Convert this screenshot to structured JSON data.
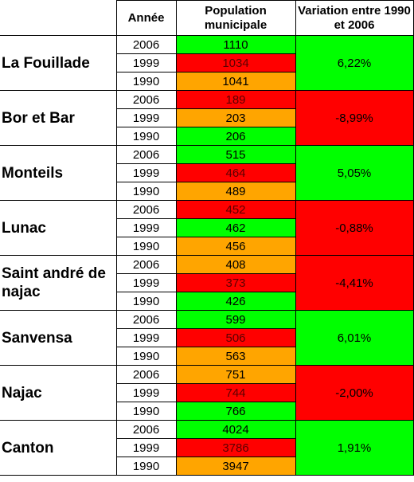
{
  "header": {
    "annee": "Année",
    "population": "Population municipale",
    "variation": "Variation entre 1990 et 2006"
  },
  "colors": {
    "green": "#00ff00",
    "orange": "#ffa500",
    "red": "#ff0000"
  },
  "communes": [
    {
      "name": "La Fouillade",
      "variation": "6,22%",
      "variation_color": "green",
      "rows": [
        {
          "year": "2006",
          "pop": "1110",
          "color": "green"
        },
        {
          "year": "1999",
          "pop": "1034",
          "color": "red"
        },
        {
          "year": "1990",
          "pop": "1041",
          "color": "orange"
        }
      ]
    },
    {
      "name": "Bor et Bar",
      "variation": "-8,99%",
      "variation_color": "red",
      "rows": [
        {
          "year": "2006",
          "pop": "189",
          "color": "red"
        },
        {
          "year": "1999",
          "pop": "203",
          "color": "orange"
        },
        {
          "year": "1990",
          "pop": "206",
          "color": "green"
        }
      ]
    },
    {
      "name": "Monteils",
      "variation": "5,05%",
      "variation_color": "green",
      "rows": [
        {
          "year": "2006",
          "pop": "515",
          "color": "green"
        },
        {
          "year": "1999",
          "pop": "464",
          "color": "red"
        },
        {
          "year": "1990",
          "pop": "489",
          "color": "orange"
        }
      ]
    },
    {
      "name": "Lunac",
      "variation": "-0,88%",
      "variation_color": "red",
      "rows": [
        {
          "year": "2006",
          "pop": "452",
          "color": "red"
        },
        {
          "year": "1999",
          "pop": "462",
          "color": "green"
        },
        {
          "year": "1990",
          "pop": "456",
          "color": "orange"
        }
      ]
    },
    {
      "name": "Saint andré de najac",
      "variation": "-4,41%",
      "variation_color": "red",
      "rows": [
        {
          "year": "2006",
          "pop": "408",
          "color": "orange"
        },
        {
          "year": "1999",
          "pop": "373",
          "color": "red"
        },
        {
          "year": "1990",
          "pop": "426",
          "color": "green"
        }
      ]
    },
    {
      "name": "Sanvensa",
      "variation": "6,01%",
      "variation_color": "green",
      "rows": [
        {
          "year": "2006",
          "pop": "599",
          "color": "green"
        },
        {
          "year": "1999",
          "pop": "506",
          "color": "red"
        },
        {
          "year": "1990",
          "pop": "563",
          "color": "orange"
        }
      ]
    },
    {
      "name": "Najac",
      "variation": "-2,00%",
      "variation_color": "red",
      "rows": [
        {
          "year": "2006",
          "pop": "751",
          "color": "orange"
        },
        {
          "year": "1999",
          "pop": "744",
          "color": "red"
        },
        {
          "year": "1990",
          "pop": "766",
          "color": "green"
        }
      ]
    },
    {
      "name": "Canton",
      "variation": "1,91%",
      "variation_color": "green",
      "rows": [
        {
          "year": "2006",
          "pop": "4024",
          "color": "green"
        },
        {
          "year": "1999",
          "pop": "3786",
          "color": "red"
        },
        {
          "year": "1990",
          "pop": "3947",
          "color": "orange"
        }
      ]
    }
  ]
}
